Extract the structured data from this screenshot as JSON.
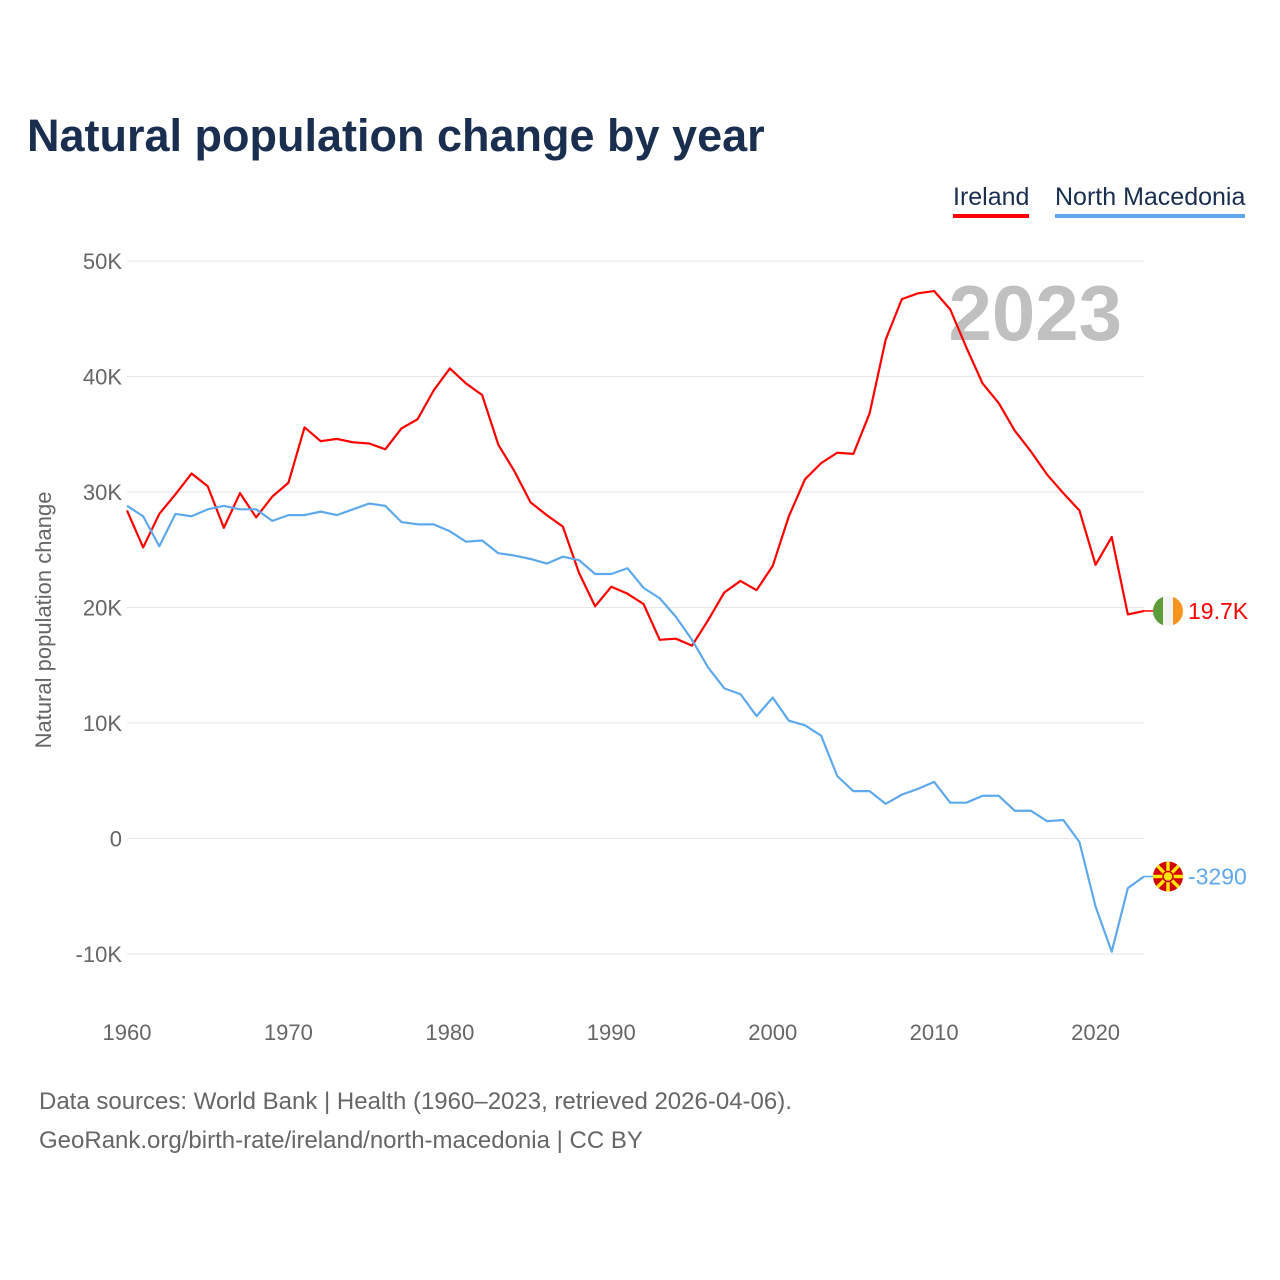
{
  "chart_data": {
    "type": "line",
    "title": "Natural population change by year",
    "xlabel": "",
    "ylabel": "Natural population change",
    "xlim": [
      1960,
      2023
    ],
    "ylim": [
      -10000,
      50000
    ],
    "grid": true,
    "legend_placement": "top-right",
    "year_label": "2023",
    "x_ticks": [
      1960,
      1970,
      1980,
      1990,
      2000,
      2010,
      2020
    ],
    "x_tick_labels": [
      "1960",
      "1970",
      "1980",
      "1990",
      "2000",
      "2010",
      "2020"
    ],
    "y_ticks": [
      -10000,
      0,
      10000,
      20000,
      30000,
      40000,
      50000
    ],
    "y_tick_labels": [
      "-10K",
      "0",
      "10K",
      "20K",
      "30K",
      "40K",
      "50K"
    ],
    "x": [
      1960,
      1961,
      1962,
      1963,
      1964,
      1965,
      1966,
      1967,
      1968,
      1969,
      1970,
      1971,
      1972,
      1973,
      1974,
      1975,
      1976,
      1977,
      1978,
      1979,
      1980,
      1981,
      1982,
      1983,
      1984,
      1985,
      1986,
      1987,
      1988,
      1989,
      1990,
      1991,
      1992,
      1993,
      1994,
      1995,
      1996,
      1997,
      1998,
      1999,
      2000,
      2001,
      2002,
      2003,
      2004,
      2005,
      2006,
      2007,
      2008,
      2009,
      2010,
      2011,
      2012,
      2013,
      2014,
      2015,
      2016,
      2017,
      2018,
      2019,
      2020,
      2021,
      2022,
      2023
    ],
    "series": [
      {
        "name": "Ireland",
        "color": "#ff0000",
        "end_label": "19.7K",
        "flag": "ireland-flag",
        "values": [
          28400,
          25200,
          28100,
          29800,
          31600,
          30500,
          26900,
          29900,
          27800,
          29600,
          30800,
          35600,
          34400,
          34600,
          34300,
          34200,
          33700,
          35500,
          36300,
          38800,
          40700,
          39400,
          38400,
          34100,
          31800,
          29100,
          28000,
          27000,
          23000,
          20100,
          21800,
          21200,
          20300,
          17200,
          17300,
          16700,
          18900,
          21300,
          22300,
          21500,
          23600,
          27900,
          31100,
          32500,
          33400,
          33300,
          36800,
          43200,
          46700,
          47200,
          47400,
          45800,
          42500,
          39400,
          37700,
          35300,
          33500,
          31500,
          29900,
          28400,
          23700,
          26100,
          19400,
          19700
        ]
      },
      {
        "name": "North Macedonia",
        "color": "#5ea9ec",
        "end_label": "-3290",
        "flag": "north-macedonia-flag",
        "values": [
          28800,
          27900,
          25300,
          28100,
          27900,
          28500,
          28800,
          28500,
          28500,
          27500,
          28000,
          28000,
          28300,
          28000,
          28500,
          29000,
          28800,
          27400,
          27200,
          27200,
          26600,
          25700,
          25800,
          24700,
          24500,
          24200,
          23800,
          24400,
          24100,
          22900,
          22900,
          23400,
          21700,
          20800,
          19200,
          17200,
          14800,
          13000,
          12500,
          10600,
          12200,
          10200,
          9800,
          8900,
          5400,
          4100,
          4100,
          3000,
          3800,
          4300,
          4900,
          3100,
          3100,
          3700,
          3700,
          2400,
          2400,
          1500,
          1600,
          -300,
          -5900,
          -9800,
          -4300,
          -3290
        ]
      }
    ]
  },
  "sources": {
    "line1": "Data sources: World Bank | Health (1960–2023, retrieved 2026-04-06).",
    "line2": "GeoRank.org/birth-rate/ireland/north-macedonia | CC BY"
  }
}
